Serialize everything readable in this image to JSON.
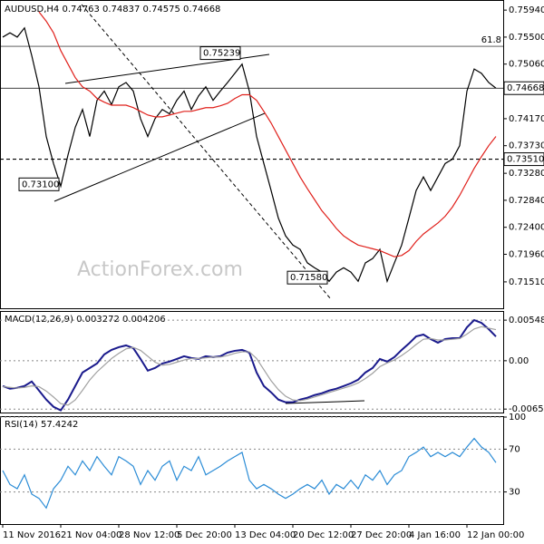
{
  "chart_data": [
    {
      "type": "line",
      "title": "AUDUSD,H4  0.74763 0.74837 0.74575 0.74668",
      "watermark": "ActionForex.com",
      "categories": [
        "11 Nov 2016",
        null,
        null,
        null,
        null,
        null,
        null,
        null,
        "21 Nov 04:00",
        null,
        null,
        null,
        null,
        null,
        null,
        null,
        "28 Nov 12:00",
        null,
        null,
        null,
        null,
        null,
        null,
        null,
        "5 Dec 20:00",
        null,
        null,
        null,
        null,
        null,
        null,
        null,
        "13 Dec 04:00",
        null,
        null,
        null,
        null,
        null,
        null,
        null,
        "20 Dec 12:00",
        null,
        null,
        null,
        null,
        null,
        null,
        null,
        "27 Dec 20:00",
        null,
        null,
        null,
        null,
        null,
        null,
        null,
        "4 Jan 16:00",
        null,
        null,
        null,
        null,
        null,
        null,
        null,
        "12 Jan 00:00",
        null,
        null,
        null,
        null
      ],
      "series": [
        {
          "color": "#000000",
          "values": [
            0.755,
            0.7557,
            0.755,
            0.7565,
            0.752,
            0.7469,
            0.7388,
            0.7344,
            0.7307,
            0.7358,
            0.7403,
            0.7432,
            0.7388,
            0.7447,
            0.7462,
            0.744,
            0.7469,
            0.7476,
            0.7462,
            0.7417,
            0.7388,
            0.7417,
            0.7432,
            0.7425,
            0.7447,
            0.7462,
            0.7432,
            0.7454,
            0.7469,
            0.7447,
            0.7462,
            0.7476,
            0.7491,
            0.7506,
            0.7462,
            0.7388,
            0.7344,
            0.73,
            0.7255,
            0.7226,
            0.7211,
            0.7204,
            0.7182,
            0.7174,
            0.7167,
            0.7152,
            0.7167,
            0.7174,
            0.7167,
            0.7152,
            0.7182,
            0.7189,
            0.7204,
            0.7152,
            0.7182,
            0.7211,
            0.7255,
            0.73,
            0.7322,
            0.73,
            0.7322,
            0.7344,
            0.7351,
            0.7373,
            0.7462,
            0.7498,
            0.7491,
            0.7476,
            0.74668
          ]
        },
        {
          "color": "#e0201b",
          "values": [
            null,
            null,
            null,
            null,
            null,
            0.7591,
            0.7576,
            0.7557,
            0.7528,
            0.7506,
            0.7484,
            0.7469,
            0.7462,
            0.745,
            0.7444,
            0.7439,
            0.7439,
            0.7439,
            0.7435,
            0.7429,
            0.7423,
            0.742,
            0.742,
            0.7423,
            0.7426,
            0.7429,
            0.7429,
            0.7432,
            0.7435,
            0.7435,
            0.7438,
            0.7442,
            0.745,
            0.7456,
            0.7456,
            0.7447,
            0.7429,
            0.741,
            0.7388,
            0.7366,
            0.7344,
            0.7322,
            0.7303,
            0.7285,
            0.7267,
            0.7253,
            0.7238,
            0.7226,
            0.7218,
            0.7211,
            0.7208,
            0.7205,
            0.7202,
            0.7197,
            0.7192,
            0.7194,
            0.7202,
            0.7217,
            0.7229,
            0.7238,
            0.7247,
            0.7258,
            0.7273,
            0.7292,
            0.7314,
            0.7336,
            0.7355,
            0.7373,
            0.7388
          ]
        }
      ],
      "ylim": [
        0.7108,
        0.7609
      ],
      "yticks": [
        {
          "value": 0.7594,
          "label": "0.75940"
        },
        {
          "value": 0.755,
          "label": "0.75500"
        },
        {
          "value": 0.7506,
          "label": "0.75060"
        },
        {
          "value": 0.7417,
          "label": "0.74170"
        },
        {
          "value": 0.7373,
          "label": "0.73730"
        },
        {
          "value": 0.7328,
          "label": "0.73280"
        },
        {
          "value": 0.7284,
          "label": "0.72840"
        },
        {
          "value": 0.724,
          "label": "0.72400"
        },
        {
          "value": 0.7196,
          "label": "0.71960"
        },
        {
          "value": 0.7151,
          "label": "0.71510"
        }
      ],
      "grid": false,
      "hlines": [
        {
          "value": 0.7535,
          "label": "61.8",
          "boxed": false,
          "dashed": false
        },
        {
          "value": 0.74668,
          "label": "0.74668",
          "boxed": true,
          "dashed": false
        },
        {
          "value": 0.7351,
          "label": "0.73510",
          "boxed": true,
          "dashed": true
        }
      ],
      "annotations": [
        {
          "value": 0.75239,
          "label": "0.75239",
          "at": 33
        },
        {
          "value": 0.731,
          "label": "0.73100",
          "at": 8
        },
        {
          "value": 0.7158,
          "label": "0.71580",
          "at": 45
        }
      ]
    },
    {
      "type": "line",
      "title": "MACD(12,26,9) 0.003272 0.004206",
      "series": [
        {
          "color": "#1a1a8c",
          "values": [
            -0.00342,
            -0.00378,
            -0.00366,
            -0.00342,
            -0.00281,
            -0.00403,
            -0.00525,
            -0.00622,
            -0.00671,
            -0.00525,
            -0.00342,
            -0.00159,
            -0.00098,
            -0.00037,
            0.00085,
            0.00146,
            0.00183,
            0.00207,
            0.00171,
            0.00024,
            -0.00134,
            -0.00098,
            -0.00037,
            -0.00012,
            0.00024,
            0.00061,
            0.00037,
            0.00024,
            0.00061,
            0.00049,
            0.00061,
            0.0011,
            0.00134,
            0.00146,
            0.0011,
            -0.00159,
            -0.00342,
            -0.00427,
            -0.00525,
            -0.00561,
            -0.00561,
            -0.00525,
            -0.005,
            -0.00464,
            -0.00439,
            -0.00403,
            -0.00378,
            -0.00342,
            -0.00305,
            -0.00256,
            -0.00159,
            -0.00098,
            0.00024,
            -0.00012,
            0.00049,
            0.00146,
            0.00232,
            0.00329,
            0.00354,
            0.00293,
            0.00244,
            0.00293,
            0.00305,
            0.00305,
            0.00451,
            0.00549,
            0.00512,
            0.00427,
            0.00327
          ]
        },
        {
          "color": "#a0a0a0",
          "values": [
            -0.0035,
            -0.0036,
            -0.0037,
            -0.0036,
            -0.0034,
            -0.0035,
            -0.0041,
            -0.0049,
            -0.0058,
            -0.006,
            -0.0053,
            -0.004,
            -0.0026,
            -0.0015,
            -0.0006,
            0.0003,
            0.001,
            0.0016,
            0.0018,
            0.0014,
            0.0006,
            -0.0002,
            -0.0006,
            -0.0005,
            -0.0002,
            0.0001,
            0.0003,
            0.0003,
            0.0004,
            0.0005,
            0.0005,
            0.0007,
            0.001,
            0.0012,
            0.0012,
            0.0003,
            -0.0012,
            -0.0027,
            -0.0039,
            -0.0048,
            -0.0053,
            -0.0054,
            -0.0052,
            -0.0049,
            -0.0046,
            -0.0043,
            -0.004,
            -0.0037,
            -0.0034,
            -0.003,
            -0.0024,
            -0.0017,
            -0.0008,
            -0.0003,
            0.0001,
            0.0007,
            0.0014,
            0.0022,
            0.0029,
            0.003,
            0.0028,
            0.0028,
            0.0029,
            0.003,
            0.0036,
            0.0043,
            0.0046,
            0.0044,
            0.0042
          ]
        }
      ],
      "ylim": [
        -0.007,
        0.0066
      ],
      "yticks": [
        0.005484,
        {
          "value": 0,
          "label": "0.00"
        },
        -0.006534
      ],
      "grid": true
    },
    {
      "type": "line",
      "title": "RSI(14) 57.4242",
      "series": [
        {
          "color": "#2b8cd6",
          "values": [
            50,
            37,
            33,
            46,
            28,
            24,
            15,
            33,
            41,
            54,
            46,
            59,
            50,
            63,
            54,
            46,
            63,
            59,
            54,
            37,
            50,
            41,
            54,
            59,
            41,
            54,
            50,
            63,
            46,
            50,
            54,
            59,
            63,
            67,
            41,
            33,
            37,
            33,
            28,
            24,
            28,
            33,
            37,
            33,
            41,
            28,
            37,
            33,
            41,
            33,
            46,
            41,
            50,
            37,
            46,
            50,
            63,
            67,
            72,
            63,
            67,
            63,
            67,
            63,
            72,
            80,
            72,
            67,
            57.42
          ]
        }
      ],
      "ylim": [
        0,
        100
      ],
      "yticks": [
        100,
        70,
        30
      ],
      "grid": true
    }
  ]
}
